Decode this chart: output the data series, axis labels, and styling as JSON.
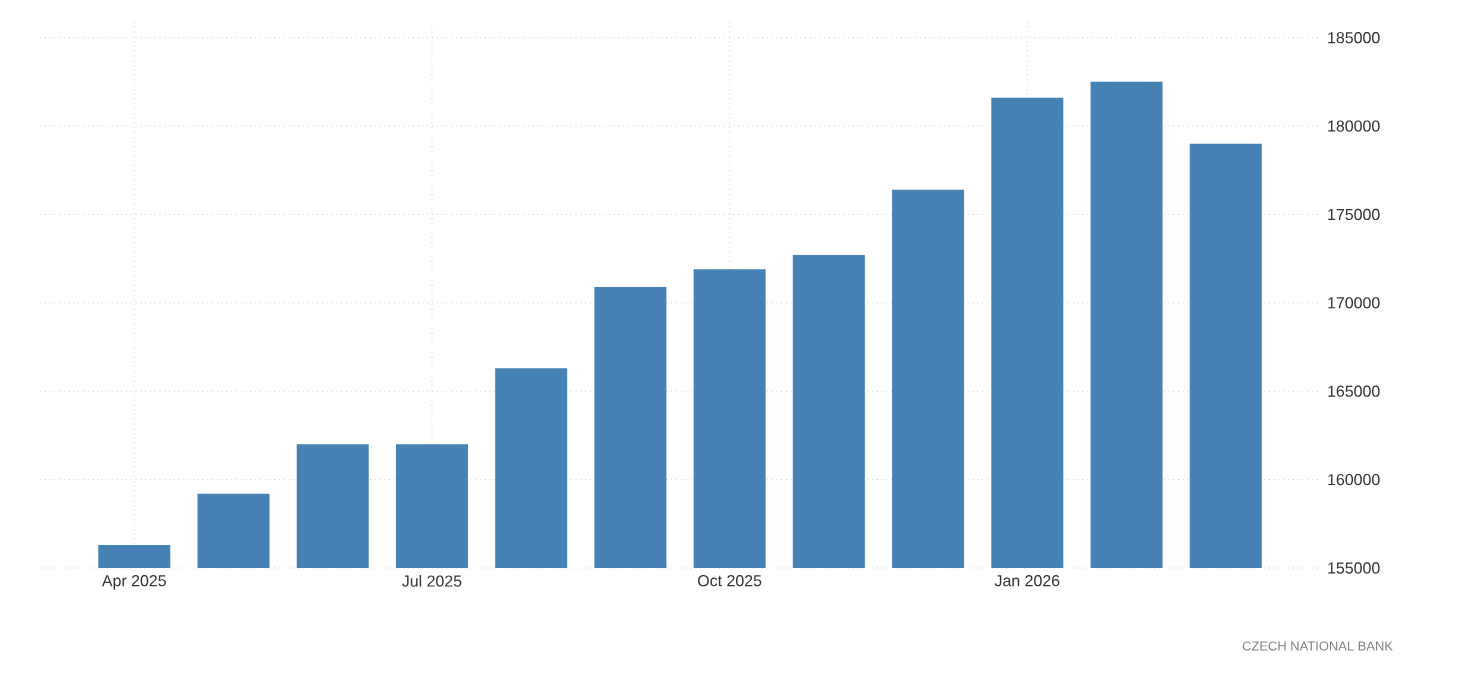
{
  "chart_data": {
    "type": "bar",
    "categories": [
      "Apr 2025",
      null,
      null,
      "Jul 2025",
      null,
      null,
      "Oct 2025",
      null,
      null,
      "Jan 2026",
      null,
      null
    ],
    "values": [
      156300,
      159200,
      162000,
      162000,
      166300,
      170900,
      171900,
      172700,
      176400,
      181600,
      182500,
      179000
    ],
    "color": "#4682b4",
    "ylim": [
      155000,
      186000
    ],
    "yticks": [
      155000,
      160000,
      165000,
      170000,
      175000,
      180000,
      185000
    ],
    "grid": true,
    "annotations": [
      "CZECH NATIONAL BANK"
    ]
  }
}
